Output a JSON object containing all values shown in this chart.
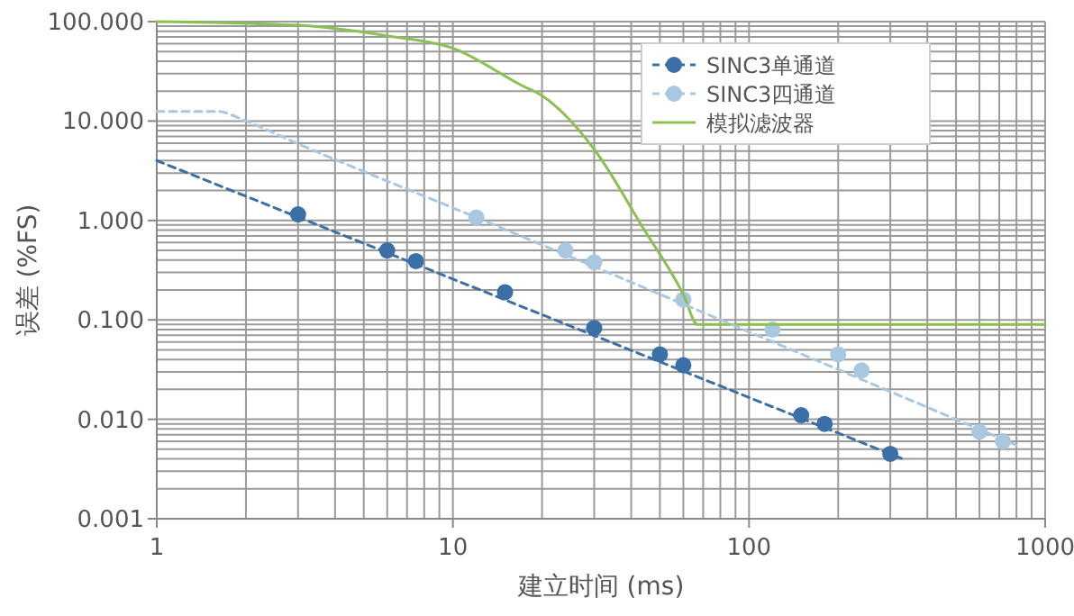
{
  "chart_data": {
    "type": "scatter",
    "xlabel": "建立时间 (ms)",
    "ylabel": "误差 (%FS)",
    "log": "xy",
    "grid": true,
    "legend": "top right",
    "xlim": [
      1,
      1000
    ],
    "xticks": [
      1,
      10,
      100,
      1000
    ],
    "ylim": [
      0.001,
      100
    ],
    "yticks": [
      {
        "value": 0.001,
        "label": "0.001"
      },
      {
        "value": 0.01,
        "label": "0.010"
      },
      {
        "value": 0.1,
        "label": "0.100"
      },
      {
        "value": 1,
        "label": "1.000"
      },
      {
        "value": 10,
        "label": "10.000"
      },
      {
        "value": 100,
        "label": "100.000"
      }
    ],
    "series": [
      {
        "name": "SINC3单通道",
        "color": "#3a6fa8",
        "line_style": "dashed",
        "marker": "circle",
        "x": [
          3,
          6,
          7.5,
          15,
          30,
          50,
          60,
          150,
          180,
          300
        ],
        "values": [
          1.15,
          0.5,
          0.39,
          0.19,
          0.083,
          0.045,
          0.035,
          0.011,
          0.009,
          0.0045
        ]
      },
      {
        "name": "SINC3四通道",
        "color": "#a9c8e0",
        "line_style": "dashed",
        "marker": "circle",
        "x": [
          12,
          24,
          30,
          60,
          120,
          200,
          240,
          600,
          720
        ],
        "values": [
          1.07,
          0.5,
          0.38,
          0.16,
          0.08,
          0.045,
          0.031,
          0.0075,
          0.006
        ]
      },
      {
        "name": "模拟滤波器",
        "type": "line",
        "color": "#8cc152",
        "line_style": "solid",
        "x": [
          1,
          3,
          6,
          10,
          17,
          20,
          30,
          44,
          60,
          67,
          1000
        ],
        "values": [
          100,
          92,
          72,
          54,
          23,
          18,
          5.2,
          0.83,
          0.18,
          0.09,
          0.09
        ]
      },
      {
        "type": "line",
        "color": "#3a6fa8",
        "line_style": "dashed",
        "x": [
          1,
          330
        ],
        "values": [
          4,
          0.004
        ]
      },
      {
        "type": "line",
        "color": "#a9c8e0",
        "line_style": "dashed",
        "x": [
          1,
          1.6,
          2,
          3,
          12,
          800
        ],
        "values": [
          12.5,
          12.5,
          10,
          5.9,
          1.07,
          0.0055
        ]
      }
    ]
  }
}
